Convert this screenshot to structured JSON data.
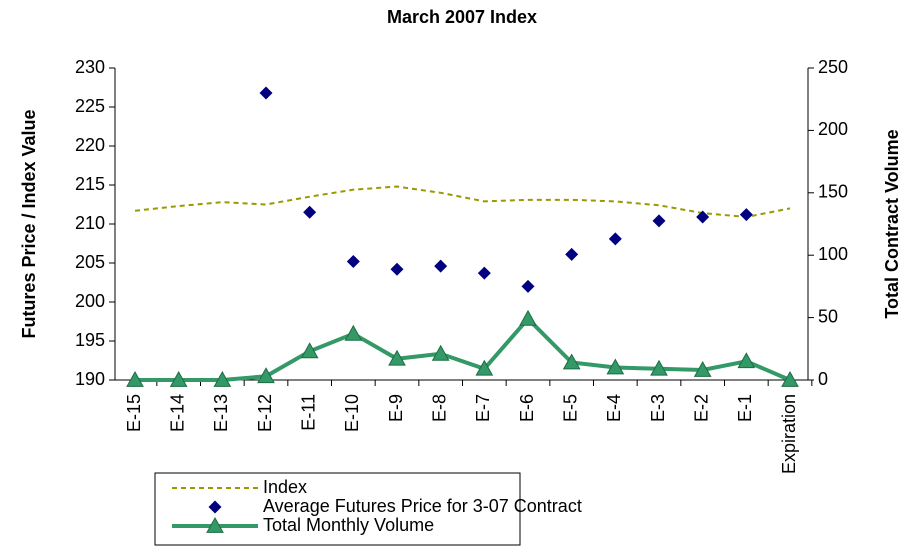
{
  "chart_data": {
    "type": "line",
    "title": "March 2007 Index",
    "y_label": "Futures Price / Index Value",
    "y2_label": "Total Contract Volume",
    "categories": [
      "E-15",
      "E-14",
      "E-13",
      "E-12",
      "E-11",
      "E-10",
      "E-9",
      "E-8",
      "E-7",
      "E-6",
      "E-5",
      "E-4",
      "E-3",
      "E-2",
      "E-1",
      "Expiration"
    ],
    "series": [
      {
        "name": "Index",
        "color": "#999900",
        "style": "dashed",
        "values": [
          211.7,
          212.3,
          212.8,
          212.5,
          213.5,
          214.4,
          214.8,
          214.0,
          212.9,
          213.1,
          213.1,
          212.9,
          212.4,
          211.4,
          210.9,
          212.0
        ]
      },
      {
        "name": "Average Futures Price for 3-07 Contract",
        "color": "#000080",
        "style": "markers",
        "values": [
          null,
          null,
          null,
          226.8,
          211.5,
          205.2,
          204.2,
          204.6,
          203.7,
          202.0,
          206.1,
          208.1,
          210.4,
          210.9,
          211.2,
          null
        ]
      },
      {
        "name": "Total Monthly Volume",
        "color": "#339966",
        "style": "line-triangle",
        "axis": "y2",
        "values": [
          0,
          0,
          0,
          3,
          23,
          37,
          17,
          21,
          9,
          49,
          14,
          10,
          9,
          8,
          15,
          0
        ]
      }
    ],
    "ylim": [
      190,
      230
    ],
    "yticks": [
      190,
      195,
      200,
      205,
      210,
      215,
      220,
      225,
      230
    ],
    "y2lim": [
      0,
      250
    ],
    "y2ticks": [
      0,
      50,
      100,
      150,
      200,
      250
    ],
    "grid": false,
    "legend": "bottom"
  }
}
